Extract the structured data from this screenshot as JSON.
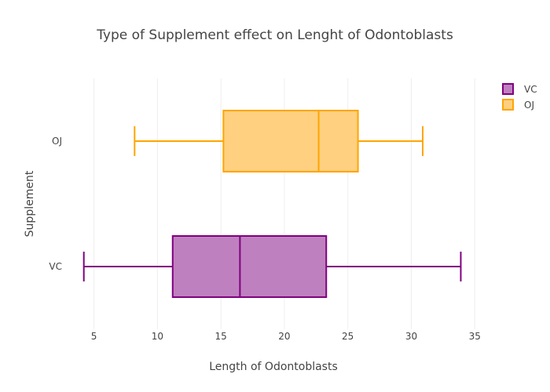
{
  "chart_data": {
    "type": "box",
    "orientation": "horizontal",
    "title": "Type of Supplement effect on Lenght of Odontoblasts",
    "xlabel": "Length of Odontoblasts",
    "ylabel": "Supplement",
    "xlim": [
      3.6,
      36.1
    ],
    "xticks": [
      5,
      10,
      15,
      20,
      25,
      30,
      35
    ],
    "grid": true,
    "legend_position": "top-right",
    "categories": [
      "VC",
      "OJ"
    ],
    "series": [
      {
        "name": "VC",
        "min": 4.2,
        "q1": 11.2,
        "median": 16.5,
        "q3": 23.3,
        "max": 33.9,
        "fill": "#bf80bf",
        "stroke": "#800080"
      },
      {
        "name": "OJ",
        "min": 8.2,
        "q1": 15.2,
        "median": 22.7,
        "q3": 25.8,
        "max": 30.9,
        "fill": "#ffd07f",
        "stroke": "#ffa500"
      }
    ],
    "legend": [
      "VC",
      "OJ"
    ]
  }
}
